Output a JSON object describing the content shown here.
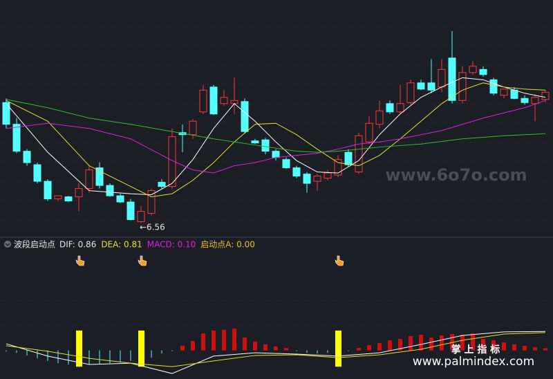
{
  "chart_data": [
    {
      "type": "candlestick",
      "ylim": [
        6.42,
        8.69
      ],
      "up_color": "#ff3b3b",
      "down_color": "#54ffff",
      "annotation": "←6.56",
      "open": [
        7.7,
        7.49,
        7.23,
        7.1,
        6.94,
        6.77,
        6.79,
        6.79,
        6.87,
        7.07,
        6.9,
        6.8,
        6.74,
        6.55,
        6.63,
        6.93,
        6.89,
        7.41,
        7.39,
        7.61,
        7.85,
        7.69,
        7.69,
        7.71,
        7.33,
        7.34,
        7.23,
        7.15,
        7.07,
        7.01,
        6.94,
        6.97,
        7.0,
        7.22,
        7.03,
        7.32,
        7.49,
        7.69,
        7.61,
        7.7,
        7.89,
        7.89,
        7.85,
        8.13,
        7.72,
        7.99,
        8.02,
        7.92,
        7.77,
        7.82,
        7.74,
        7.69,
        7.73
      ],
      "high": [
        7.74,
        7.55,
        7.25,
        7.12,
        6.96,
        6.8,
        6.8,
        6.92,
        7.09,
        7.12,
        6.92,
        6.82,
        6.77,
        6.7,
        6.87,
        6.96,
        7.45,
        7.49,
        7.54,
        7.87,
        7.87,
        7.82,
        7.94,
        7.74,
        7.35,
        7.36,
        7.25,
        7.17,
        7.09,
        7.03,
        7.01,
        7.05,
        7.19,
        7.25,
        7.41,
        7.57,
        7.72,
        7.72,
        7.87,
        7.92,
        7.92,
        8.12,
        8.12,
        8.39,
        8.05,
        8.1,
        8.05,
        7.94,
        7.83,
        7.85,
        7.77,
        7.78,
        7.82
      ],
      "low": [
        7.45,
        7.21,
        7.09,
        6.92,
        6.75,
        6.75,
        6.74,
        6.65,
        6.83,
        6.87,
        6.79,
        6.73,
        6.56,
        6.54,
        6.61,
        6.87,
        6.87,
        7.22,
        7.35,
        7.59,
        7.58,
        7.67,
        7.59,
        7.4,
        7.3,
        7.2,
        7.14,
        7.06,
        6.97,
        6.83,
        6.85,
        6.95,
        6.98,
        7.08,
        7.01,
        7.3,
        7.45,
        7.59,
        7.59,
        7.68,
        7.82,
        7.79,
        7.8,
        7.69,
        7.69,
        7.97,
        7.95,
        7.77,
        7.74,
        7.73,
        7.68,
        7.52,
        7.7
      ],
      "close": [
        7.49,
        7.23,
        7.12,
        6.94,
        6.77,
        6.8,
        6.75,
        6.87,
        7.05,
        6.9,
        6.8,
        6.74,
        6.57,
        6.65,
        6.85,
        6.89,
        7.37,
        7.39,
        7.52,
        7.82,
        7.59,
        7.75,
        7.72,
        7.42,
        7.31,
        7.23,
        7.17,
        7.07,
        6.99,
        6.92,
        6.99,
        7.02,
        7.15,
        7.1,
        7.38,
        7.5,
        7.62,
        7.61,
        7.69,
        7.89,
        7.83,
        7.82,
        8.02,
        7.72,
        7.99,
        8.05,
        7.97,
        7.79,
        7.83,
        7.74,
        7.7,
        7.75,
        7.8
      ],
      "series": [
        {
          "color": "#ffffff",
          "x": [
            0,
            4,
            8,
            12,
            14,
            16,
            18,
            20,
            22,
            24,
            26,
            28,
            30,
            32,
            34,
            36,
            38,
            40,
            42,
            44,
            46,
            48,
            50,
            52
          ],
          "values": [
            7.69,
            7.22,
            6.85,
            6.82,
            6.81,
            6.92,
            7.15,
            7.45,
            7.69,
            7.52,
            7.32,
            7.14,
            7.03,
            7.02,
            7.14,
            7.39,
            7.59,
            7.75,
            7.85,
            7.94,
            7.92,
            7.85,
            7.79,
            7.75
          ]
        },
        {
          "color": "#e8e030",
          "x": [
            0,
            4,
            8,
            12,
            14,
            16,
            18,
            20,
            22,
            24,
            26,
            28,
            30,
            32,
            34,
            36,
            38,
            40,
            42,
            44,
            46,
            48,
            50,
            52
          ],
          "values": [
            7.72,
            7.52,
            7.09,
            6.89,
            6.79,
            6.82,
            6.95,
            7.12,
            7.32,
            7.49,
            7.5,
            7.39,
            7.25,
            7.12,
            7.09,
            7.19,
            7.35,
            7.52,
            7.69,
            7.82,
            7.89,
            7.85,
            7.83,
            7.82
          ]
        },
        {
          "color": "#e020e0",
          "x": [
            0,
            4,
            8,
            12,
            16,
            18,
            20,
            22,
            24,
            26,
            28,
            30,
            32,
            34,
            36,
            38,
            40,
            42,
            44,
            46,
            48,
            50,
            52
          ],
          "values": [
            7.45,
            7.5,
            7.45,
            7.35,
            7.14,
            7.05,
            7.02,
            7.09,
            7.12,
            7.17,
            7.19,
            7.21,
            7.25,
            7.3,
            7.32,
            7.35,
            7.39,
            7.43,
            7.49,
            7.55,
            7.6,
            7.65,
            7.72
          ]
        },
        {
          "color": "#30c030",
          "x": [
            0,
            4,
            8,
            12,
            16,
            20,
            24,
            28,
            30,
            32,
            36,
            40,
            44,
            48,
            52
          ],
          "values": [
            7.73,
            7.65,
            7.55,
            7.49,
            7.42,
            7.35,
            7.29,
            7.23,
            7.22,
            7.23,
            7.27,
            7.3,
            7.35,
            7.38,
            7.4
          ]
        }
      ]
    },
    {
      "type": "macd",
      "ylim": [
        -1.3,
        4.7
      ],
      "up_color": "#d01010",
      "down_color": "#54ffff",
      "values": [
        -0.05,
        -0.11,
        -0.23,
        -0.36,
        -0.48,
        -0.58,
        -0.64,
        -0.67,
        -0.64,
        -0.61,
        -0.58,
        -0.55,
        -0.48,
        -0.42,
        -0.33,
        -0.14,
        -0.04,
        0.21,
        0.43,
        0.77,
        0.9,
        0.93,
        0.99,
        0.58,
        0.4,
        0.27,
        0.18,
        0.11,
        -0.04,
        -0.11,
        -0.14,
        -0.11,
        -0.04,
        -0.04,
        0.11,
        0.24,
        0.33,
        0.46,
        0.52,
        0.65,
        0.71,
        0.58,
        0.68,
        0.74,
        0.71,
        0.77,
        0.52,
        0.46,
        0.36,
        0.27,
        0.21,
        0.14,
        0.1
      ],
      "series": [
        {
          "color": "#ffffff",
          "x": [
            0,
            4,
            8,
            12,
            16,
            20,
            24,
            28,
            32,
            36,
            40,
            44,
            48,
            52
          ],
          "values": [
            0.3,
            -0.26,
            -0.64,
            -0.58,
            -1.05,
            -0.26,
            -0.11,
            -0.17,
            -0.26,
            -0.11,
            0.27,
            0.68,
            0.84,
            0.86
          ]
        },
        {
          "color": "#e8e030",
          "x": [
            0,
            4,
            8,
            12,
            16,
            20,
            24,
            28,
            32,
            36,
            40,
            44,
            48,
            52
          ],
          "values": [
            0.21,
            -0.04,
            -0.36,
            -0.58,
            -0.74,
            -0.48,
            -0.23,
            -0.2,
            -0.33,
            -0.2,
            0.05,
            0.46,
            0.74,
            0.81
          ]
        }
      ],
      "signals": {
        "color": "#ffff00",
        "x": [
          7,
          13,
          32
        ],
        "high": [
          0.9,
          0.9,
          0.9
        ],
        "low": [
          -0.74,
          -0.74,
          -0.74
        ]
      }
    }
  ],
  "indicator": {
    "name": "波段启动点",
    "readouts": [
      {
        "text": "DIF: 0.86",
        "color": "#e6e6e6"
      },
      {
        "text": "DEA: 0.81",
        "color": "#e8e030"
      },
      {
        "text": "MACD: 0.10",
        "color": "#e020e0"
      },
      {
        "text": "启动点A: 0.00",
        "color": "#e8c020"
      }
    ]
  },
  "watermarks": [
    "www.6o7o.com",
    "掌 上 指 标",
    "www.palmindex.com"
  ]
}
